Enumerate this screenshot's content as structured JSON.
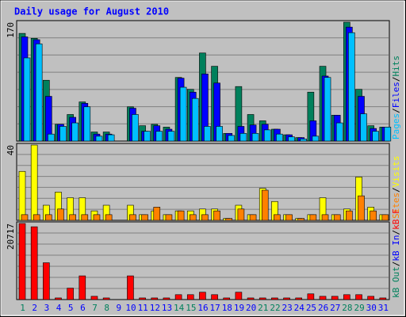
{
  "title": "Daily usage for August 2010",
  "chart_data": [
    {
      "type": "bar",
      "ylim": [
        0,
        170
      ],
      "yticks": [
        170
      ],
      "grid": true,
      "separator": "/",
      "series": [
        {
          "name": "Hits",
          "color": "#00805c",
          "values": [
            154,
            147,
            87,
            24,
            38,
            56,
            13,
            13,
            0,
            49,
            22,
            24,
            20,
            91,
            74,
            126,
            107,
            11,
            78,
            38,
            29,
            17,
            9,
            5,
            70,
            107,
            37,
            170,
            74,
            22,
            20
          ]
        },
        {
          "name": "Files",
          "color": "#0000ff",
          "values": [
            149,
            145,
            64,
            24,
            34,
            54,
            10,
            10,
            0,
            47,
            14,
            22,
            17,
            90,
            70,
            96,
            83,
            11,
            21,
            23,
            24,
            17,
            9,
            5,
            29,
            93,
            37,
            163,
            64,
            18,
            20
          ]
        },
        {
          "name": "Pages",
          "color": "#00c0ff",
          "values": [
            119,
            139,
            10,
            21,
            26,
            49,
            7,
            9,
            0,
            38,
            14,
            14,
            14,
            77,
            61,
            21,
            21,
            8,
            11,
            11,
            16,
            10,
            6,
            3,
            7,
            91,
            26,
            155,
            39,
            14,
            20
          ]
        }
      ]
    },
    {
      "type": "bar",
      "ylim": [
        0,
        40
      ],
      "yticks": [
        40
      ],
      "grid": true,
      "separator": "/",
      "series": [
        {
          "name": "Visits",
          "color": "#ffff00",
          "values": [
            26,
            40,
            8,
            15,
            12,
            12,
            5,
            8,
            0,
            8,
            3,
            5,
            3,
            5,
            5,
            6,
            6,
            1,
            8,
            3,
            17,
            10,
            3,
            1,
            3,
            12,
            3,
            6,
            23,
            7,
            3
          ]
        },
        {
          "name": "Sites",
          "color": "#ff8000",
          "values": [
            3,
            3,
            3,
            6,
            3,
            3,
            3,
            3,
            0,
            3,
            3,
            7,
            3,
            5,
            3,
            3,
            5,
            1,
            6,
            3,
            16,
            3,
            3,
            1,
            3,
            3,
            3,
            5,
            13,
            5,
            3
          ]
        }
      ]
    },
    {
      "type": "bar",
      "ylim": [
        0,
        20717
      ],
      "yticks": [
        20717
      ],
      "grid": true,
      "separator": "/",
      "categories": [
        "1",
        "2",
        "3",
        "4",
        "5",
        "6",
        "7",
        "8",
        "9",
        "10",
        "11",
        "12",
        "13",
        "14",
        "15",
        "16",
        "17",
        "18",
        "19",
        "20",
        "21",
        "22",
        "23",
        "24",
        "25",
        "26",
        "27",
        "28",
        "29",
        "30",
        "31"
      ],
      "category_colors": [
        "#00805c",
        "#0000ff",
        "#0000ff",
        "#0000ff",
        "#0000ff",
        "#0000ff",
        "#00805c",
        "#00805c",
        "#0000ff",
        "#0000ff",
        "#0000ff",
        "#0000ff",
        "#0000ff",
        "#00805c",
        "#00805c",
        "#0000ff",
        "#0000ff",
        "#0000ff",
        "#0000ff",
        "#0000ff",
        "#00805c",
        "#00805c",
        "#0000ff",
        "#0000ff",
        "#0000ff",
        "#0000ff",
        "#0000ff",
        "#00805c",
        "#00805c",
        "#0000ff",
        "#0000ff"
      ],
      "series": [
        {
          "name": "kB F",
          "color": "#ff0000",
          "values": [
            20717,
            19826,
            10025,
            445,
            3118,
            6459,
            891,
            445,
            0,
            6459,
            445,
            445,
            445,
            1336,
            1336,
            2005,
            1336,
            445,
            2005,
            445,
            445,
            445,
            445,
            445,
            1559,
            891,
            891,
            1336,
            1336,
            891,
            445
          ]
        },
        {
          "name": "kB In",
          "color": "#0000ff",
          "values": [
            0,
            0,
            0,
            0,
            0,
            0,
            0,
            0,
            0,
            0,
            0,
            0,
            0,
            0,
            0,
            0,
            0,
            0,
            0,
            0,
            0,
            0,
            0,
            0,
            0,
            0,
            0,
            0,
            0,
            0,
            0
          ]
        },
        {
          "name": "kB Out",
          "color": "#00805c",
          "values": [
            0,
            0,
            0,
            0,
            0,
            0,
            0,
            0,
            0,
            0,
            0,
            0,
            0,
            0,
            0,
            0,
            0,
            0,
            0,
            0,
            0,
            0,
            0,
            0,
            0,
            0,
            0,
            0,
            0,
            0,
            0
          ]
        }
      ]
    }
  ]
}
